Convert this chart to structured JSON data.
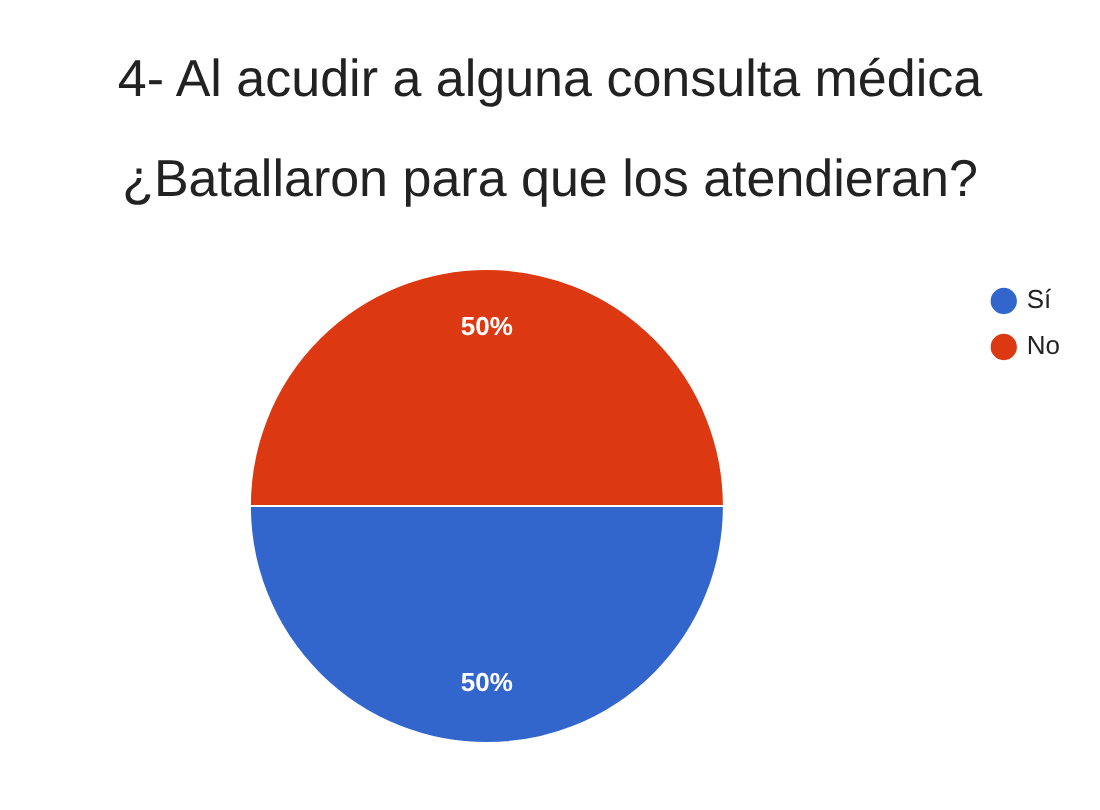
{
  "chart_data": {
    "type": "pie",
    "title": "4- Al acudir a alguna consulta médica ¿Batallaron para que los atendieran?",
    "categories": [
      "Sí",
      "No"
    ],
    "values": [
      50,
      50
    ],
    "colors": [
      "#3366cc",
      "#dc3912"
    ],
    "value_labels": [
      "50%",
      "50%"
    ],
    "legend": "top right"
  }
}
